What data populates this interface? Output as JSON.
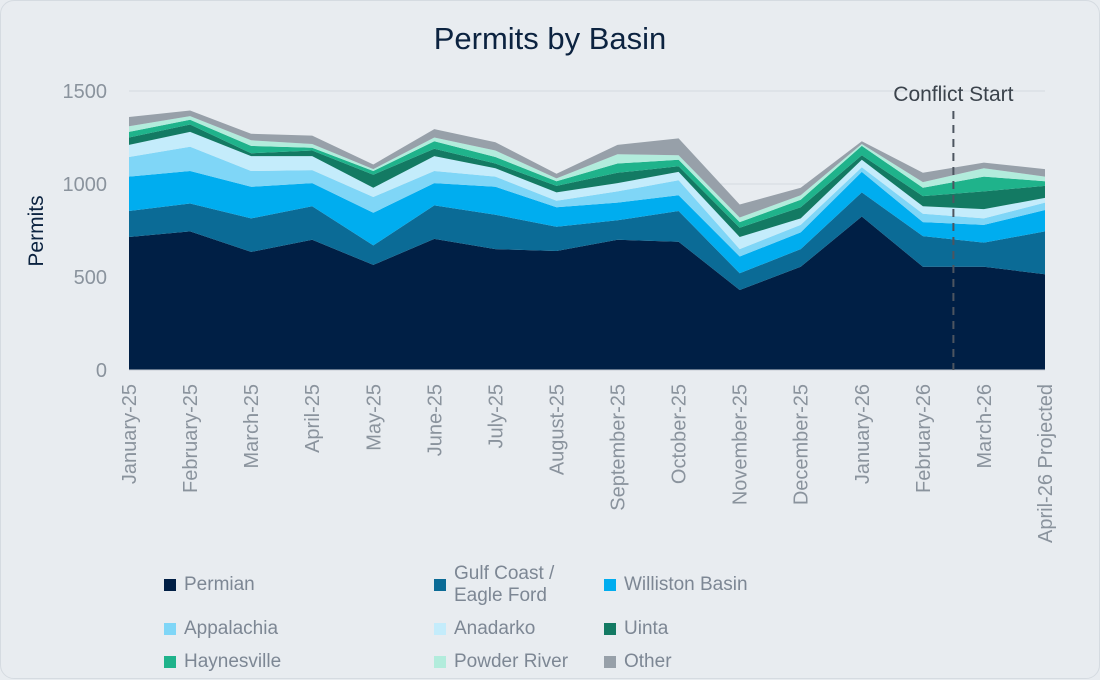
{
  "chart_data": {
    "type": "area",
    "stacked": true,
    "title": "Permits by Basin",
    "ylabel": "Permits",
    "xlabel": "",
    "ylim": [
      0,
      1500
    ],
    "yticks": [
      0,
      500,
      1000,
      1500
    ],
    "grid": "horizontal",
    "legend_position": "bottom",
    "categories": [
      "January-25",
      "February-25",
      "March-25",
      "April-25",
      "May-25",
      "June-25",
      "July-25",
      "August-25",
      "September-25",
      "October-25",
      "November-25",
      "December-25",
      "January-26",
      "February-26",
      "March-26",
      "April-26 Projected"
    ],
    "series": [
      {
        "name": "Permian",
        "color": "#001f45",
        "values": [
          715,
          745,
          635,
          700,
          565,
          705,
          650,
          640,
          700,
          690,
          430,
          555,
          825,
          555,
          555,
          515
        ]
      },
      {
        "name": "Gulf Coast / Eagle Ford",
        "color": "#0b6b96",
        "values": [
          140,
          150,
          180,
          180,
          105,
          180,
          185,
          130,
          105,
          165,
          90,
          95,
          130,
          165,
          130,
          230
        ]
      },
      {
        "name": "Williston Basin",
        "color": "#00adef",
        "values": [
          185,
          175,
          170,
          125,
          175,
          120,
          150,
          105,
          95,
          85,
          90,
          90,
          110,
          75,
          95,
          115
        ]
      },
      {
        "name": "Appalachia",
        "color": "#7fd6f7",
        "values": [
          105,
          130,
          85,
          70,
          85,
          65,
          55,
          35,
          60,
          80,
          40,
          40,
          25,
          45,
          35,
          40
        ]
      },
      {
        "name": "Anadarko",
        "color": "#c4ecfb",
        "values": [
          65,
          80,
          80,
          75,
          50,
          80,
          45,
          45,
          45,
          45,
          65,
          35,
          40,
          40,
          50,
          25
        ]
      },
      {
        "name": "Uinta",
        "color": "#137a63",
        "values": [
          40,
          40,
          15,
          30,
          70,
          40,
          25,
          35,
          55,
          30,
          50,
          60,
          25,
          55,
          95,
          65
        ]
      },
      {
        "name": "Haynesville",
        "color": "#1fb38b",
        "values": [
          30,
          25,
          40,
          15,
          20,
          40,
          35,
          25,
          50,
          35,
          30,
          40,
          50,
          45,
          80,
          25
        ]
      },
      {
        "name": "Powder River",
        "color": "#b2ecdc",
        "values": [
          30,
          20,
          30,
          20,
          10,
          20,
          35,
          15,
          50,
          25,
          25,
          25,
          10,
          30,
          45,
          25
        ]
      },
      {
        "name": "Other",
        "color": "#97a0a9",
        "values": [
          50,
          30,
          35,
          45,
          25,
          45,
          45,
          25,
          50,
          90,
          70,
          40,
          15,
          50,
          30,
          40
        ]
      }
    ],
    "annotations": [
      {
        "text": "Conflict Start",
        "x_position": "between February-26 and March-26",
        "style": "dashed vertical line"
      }
    ]
  }
}
